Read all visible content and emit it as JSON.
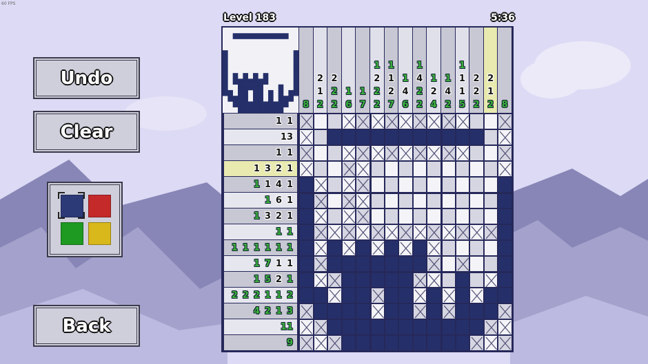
{
  "fps": "60 FPS",
  "level_label": "Level 183",
  "timer": "5:36",
  "buttons": {
    "undo": "Undo",
    "clear": "Clear",
    "back": "Back"
  },
  "palette": {
    "colors": [
      "#2d3a78",
      "#c42a2a",
      "#1e9a22",
      "#d8b81a"
    ],
    "selected": 0
  },
  "colors": {
    "filled": "#25306a",
    "clue_done": "#3cb43c",
    "highlight": "#e8eab0",
    "grid_line": "#26285a"
  },
  "highlight": {
    "row": 3,
    "column": 13
  },
  "column_clues": [
    [
      {
        "n": "8",
        "done": true
      }
    ],
    [
      {
        "n": "2",
        "done": false
      },
      {
        "n": "1",
        "done": false
      },
      {
        "n": "2",
        "done": true
      }
    ],
    [
      {
        "n": "2",
        "done": false
      },
      {
        "n": "2",
        "done": true
      },
      {
        "n": "2",
        "done": true
      }
    ],
    [
      {
        "n": "1",
        "done": true
      },
      {
        "n": "6",
        "done": true
      }
    ],
    [
      {
        "n": "1",
        "done": true
      },
      {
        "n": "7",
        "done": true
      }
    ],
    [
      {
        "n": "1",
        "done": true
      },
      {
        "n": "2",
        "done": false
      },
      {
        "n": "2",
        "done": true
      },
      {
        "n": "2",
        "done": true
      }
    ],
    [
      {
        "n": "1",
        "done": true
      },
      {
        "n": "1",
        "done": false
      },
      {
        "n": "2",
        "done": false
      },
      {
        "n": "7",
        "done": true
      }
    ],
    [
      {
        "n": "1",
        "done": true
      },
      {
        "n": "4",
        "done": false
      },
      {
        "n": "6",
        "done": true
      }
    ],
    [
      {
        "n": "1",
        "done": true
      },
      {
        "n": "4",
        "done": false
      },
      {
        "n": "2",
        "done": true
      },
      {
        "n": "2",
        "done": true
      }
    ],
    [
      {
        "n": "1",
        "done": true
      },
      {
        "n": "2",
        "done": false
      },
      {
        "n": "4",
        "done": true
      }
    ],
    [
      {
        "n": "1",
        "done": true
      },
      {
        "n": "4",
        "done": false
      },
      {
        "n": "2",
        "done": true
      }
    ],
    [
      {
        "n": "1",
        "done": true
      },
      {
        "n": "1",
        "done": false
      },
      {
        "n": "1",
        "done": false
      },
      {
        "n": "5",
        "done": true
      }
    ],
    [
      {
        "n": "2",
        "done": false
      },
      {
        "n": "2",
        "done": false
      },
      {
        "n": "2",
        "done": true
      }
    ],
    [
      {
        "n": "2",
        "done": false
      },
      {
        "n": "1",
        "done": false
      },
      {
        "n": "2",
        "done": true
      }
    ],
    [
      {
        "n": "8",
        "done": true
      }
    ]
  ],
  "row_clues": [
    [
      {
        "n": "1",
        "done": false
      },
      {
        "n": "1",
        "done": false
      }
    ],
    [
      {
        "n": "13",
        "done": false
      }
    ],
    [
      {
        "n": "1",
        "done": false
      },
      {
        "n": "1",
        "done": false
      }
    ],
    [
      {
        "n": "1",
        "done": false
      },
      {
        "n": "3",
        "done": false
      },
      {
        "n": "2",
        "done": false
      },
      {
        "n": "1",
        "done": false
      }
    ],
    [
      {
        "n": "1",
        "done": true
      },
      {
        "n": "1",
        "done": false
      },
      {
        "n": "4",
        "done": false
      },
      {
        "n": "1",
        "done": false
      }
    ],
    [
      {
        "n": "1",
        "done": true
      },
      {
        "n": "6",
        "done": false
      },
      {
        "n": "1",
        "done": false
      }
    ],
    [
      {
        "n": "1",
        "done": true
      },
      {
        "n": "3",
        "done": false
      },
      {
        "n": "2",
        "done": false
      },
      {
        "n": "1",
        "done": false
      }
    ],
    [
      {
        "n": "1",
        "done": true
      },
      {
        "n": "1",
        "done": true
      }
    ],
    [
      {
        "n": "1",
        "done": true
      },
      {
        "n": "1",
        "done": true
      },
      {
        "n": "1",
        "done": true
      },
      {
        "n": "1",
        "done": true
      },
      {
        "n": "1",
        "done": true
      },
      {
        "n": "1",
        "done": true
      }
    ],
    [
      {
        "n": "1",
        "done": true
      },
      {
        "n": "7",
        "done": true
      },
      {
        "n": "1",
        "done": false
      },
      {
        "n": "1",
        "done": false
      }
    ],
    [
      {
        "n": "1",
        "done": true
      },
      {
        "n": "5",
        "done": true
      },
      {
        "n": "2",
        "done": false
      },
      {
        "n": "1",
        "done": true
      }
    ],
    [
      {
        "n": "2",
        "done": true
      },
      {
        "n": "2",
        "done": true
      },
      {
        "n": "2",
        "done": true
      },
      {
        "n": "1",
        "done": true
      },
      {
        "n": "1",
        "done": true
      },
      {
        "n": "2",
        "done": true
      }
    ],
    [
      {
        "n": "4",
        "done": true
      },
      {
        "n": "2",
        "done": true
      },
      {
        "n": "1",
        "done": true
      },
      {
        "n": "3",
        "done": true
      }
    ],
    [
      {
        "n": "11",
        "done": true
      }
    ],
    [
      {
        "n": "9",
        "done": true
      }
    ]
  ],
  "grid": [
    "xeexxxxxxxxxeex",
    "xefffffffffffex",
    "xeexxxxxxxxxeex",
    "xeexxeeeeeeeeex",
    "fxexxeeeeeeeeef",
    "fxexxeeeeeeeeef",
    "fxexxeeeeeeeeef",
    "fxxxxxxxxxxxxxf",
    "fxfxfxfxfxeeeef",
    "fxfffffffxexeef",
    "fxxfffffxxefexf",
    "ffxffxffxfxfxff",
    "xffffxffxfxfffx",
    "xxfffffffffffxx",
    "xxxfffffffffxxx"
  ]
}
